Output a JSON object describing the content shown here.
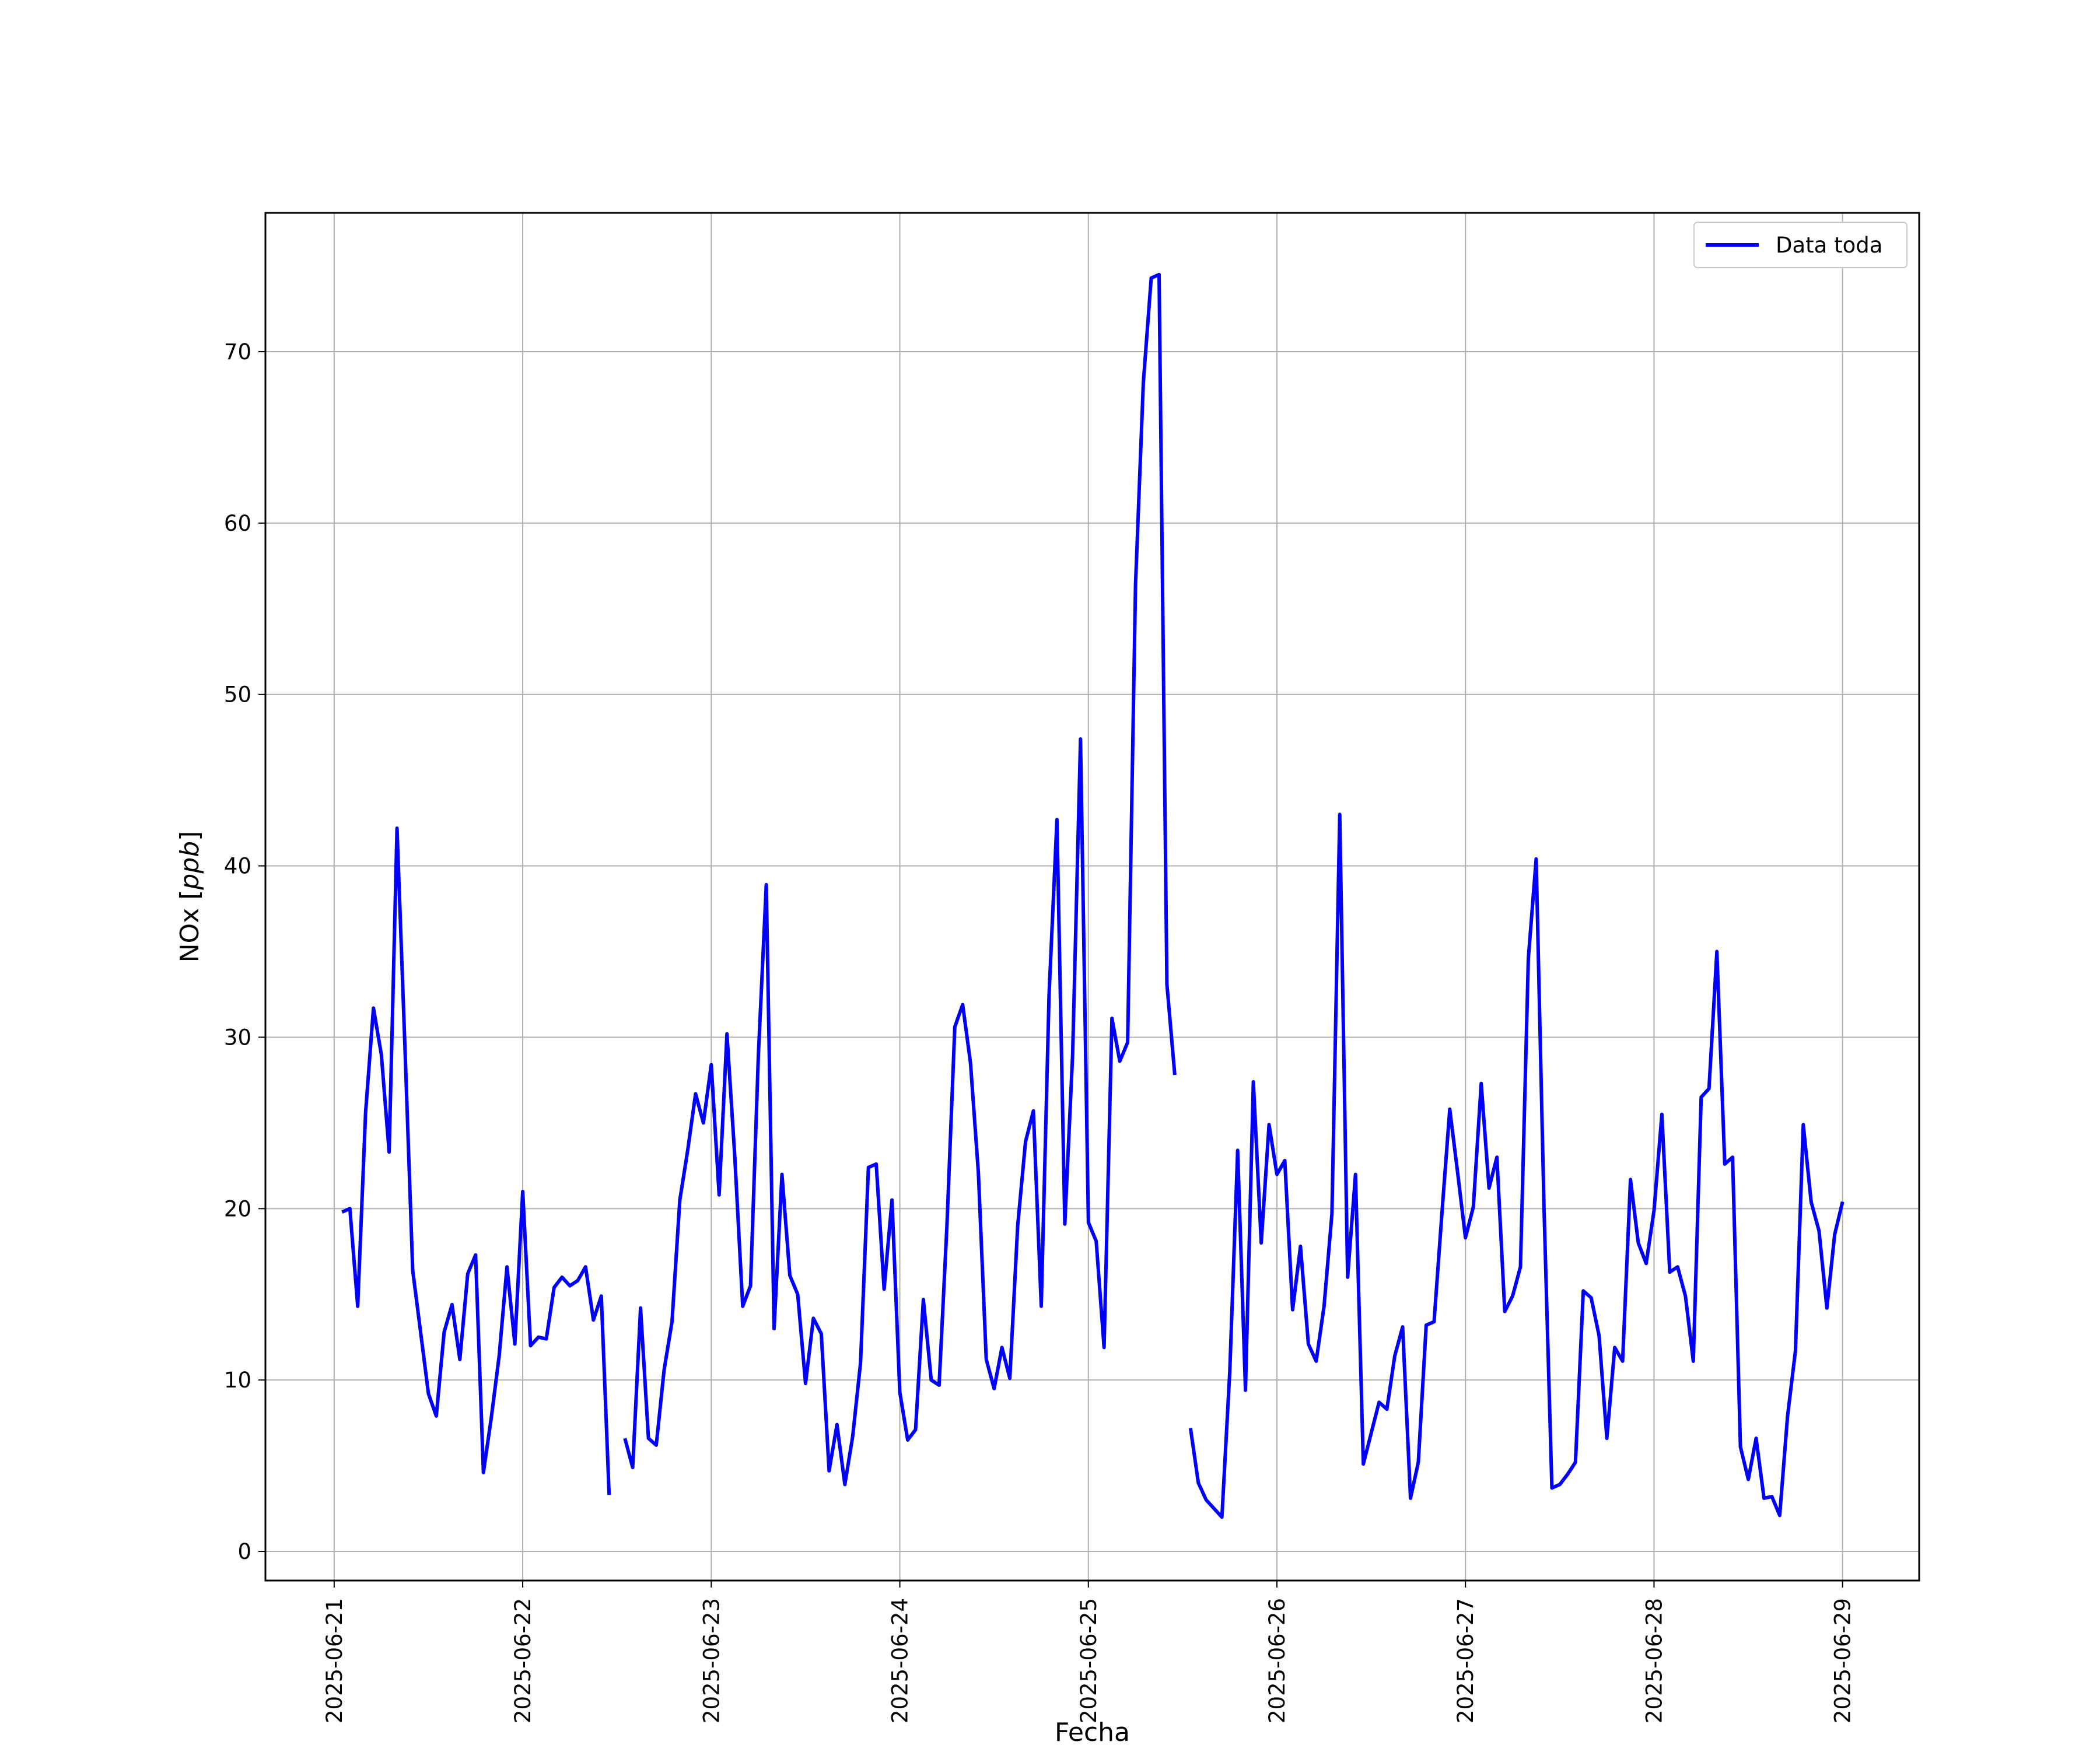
{
  "chart_data": {
    "type": "line",
    "title": "",
    "xlabel": "Fecha",
    "ylabel_main": "NOx [",
    "ylabel_unit": "ppb",
    "ylabel_close": "]",
    "x_ticks": [
      "2025-06-21",
      "2025-06-22",
      "2025-06-23",
      "2025-06-24",
      "2025-06-25",
      "2025-06-26",
      "2025-06-27",
      "2025-06-28",
      "2025-06-29"
    ],
    "y_ticks": [
      0,
      10,
      20,
      30,
      40,
      50,
      60,
      70
    ],
    "xlim": [
      "2025-06-20T15:15",
      "2025-06-29T09:45"
    ],
    "ylim": [
      -1.7,
      78.1
    ],
    "grid": true,
    "legend_position": "top-right",
    "series": [
      {
        "name": "Data toda",
        "color": "#0000ff",
        "points": [
          [
            "2025-06-21T01:00",
            19.8
          ],
          [
            "2025-06-21T02:00",
            20.0
          ],
          [
            "2025-06-21T03:00",
            14.3
          ],
          [
            "2025-06-21T04:00",
            25.6
          ],
          [
            "2025-06-21T05:00",
            31.7
          ],
          [
            "2025-06-21T06:00",
            29.0
          ],
          [
            "2025-06-21T07:00",
            23.3
          ],
          [
            "2025-06-21T08:00",
            42.2
          ],
          [
            "2025-06-21T09:00",
            29.5
          ],
          [
            "2025-06-21T10:00",
            16.4
          ],
          [
            "2025-06-21T11:00",
            12.8
          ],
          [
            "2025-06-21T12:00",
            9.2
          ],
          [
            "2025-06-21T13:00",
            7.9
          ],
          [
            "2025-06-21T14:00",
            12.8
          ],
          [
            "2025-06-21T15:00",
            14.4
          ],
          [
            "2025-06-21T16:00",
            11.2
          ],
          [
            "2025-06-21T17:00",
            16.2
          ],
          [
            "2025-06-21T18:00",
            17.3
          ],
          [
            "2025-06-21T19:00",
            4.6
          ],
          [
            "2025-06-21T20:00",
            7.8
          ],
          [
            "2025-06-21T21:00",
            11.4
          ],
          [
            "2025-06-21T22:00",
            16.6
          ],
          [
            "2025-06-21T23:00",
            12.1
          ],
          [
            "2025-06-22T00:00",
            21.0
          ],
          [
            "2025-06-22T01:00",
            12.0
          ],
          [
            "2025-06-22T02:00",
            12.5
          ],
          [
            "2025-06-22T03:00",
            12.4
          ],
          [
            "2025-06-22T04:00",
            15.4
          ],
          [
            "2025-06-22T05:00",
            16.0
          ],
          [
            "2025-06-22T06:00",
            15.5
          ],
          [
            "2025-06-22T07:00",
            15.8
          ],
          [
            "2025-06-22T08:00",
            16.6
          ],
          [
            "2025-06-22T09:00",
            13.5
          ],
          [
            "2025-06-22T10:00",
            14.9
          ],
          [
            "2025-06-22T11:00",
            3.3
          ],
          [
            "2025-06-22T12:00",
            null
          ],
          [
            "2025-06-22T13:00",
            6.6
          ],
          [
            "2025-06-22T14:00",
            4.9
          ],
          [
            "2025-06-22T15:00",
            14.2
          ],
          [
            "2025-06-22T16:00",
            6.6
          ],
          [
            "2025-06-22T17:00",
            6.2
          ],
          [
            "2025-06-22T18:00",
            10.6
          ],
          [
            "2025-06-22T19:00",
            13.4
          ],
          [
            "2025-06-22T20:00",
            20.5
          ],
          [
            "2025-06-22T21:00",
            23.4
          ],
          [
            "2025-06-22T22:00",
            26.7
          ],
          [
            "2025-06-22T23:00",
            25.0
          ],
          [
            "2025-06-23T00:00",
            28.4
          ],
          [
            "2025-06-23T01:00",
            20.8
          ],
          [
            "2025-06-23T02:00",
            30.2
          ],
          [
            "2025-06-23T03:00",
            23.0
          ],
          [
            "2025-06-23T04:00",
            14.3
          ],
          [
            "2025-06-23T05:00",
            15.5
          ],
          [
            "2025-06-23T06:00",
            29.0
          ],
          [
            "2025-06-23T07:00",
            38.9
          ],
          [
            "2025-06-23T08:00",
            13.0
          ],
          [
            "2025-06-23T09:00",
            22.0
          ],
          [
            "2025-06-23T10:00",
            16.1
          ],
          [
            "2025-06-23T11:00",
            15.0
          ],
          [
            "2025-06-23T12:00",
            9.8
          ],
          [
            "2025-06-23T13:00",
            13.6
          ],
          [
            "2025-06-23T14:00",
            12.7
          ],
          [
            "2025-06-23T15:00",
            4.7
          ],
          [
            "2025-06-23T16:00",
            7.4
          ],
          [
            "2025-06-23T17:00",
            3.9
          ],
          [
            "2025-06-23T18:00",
            6.7
          ],
          [
            "2025-06-23T19:00",
            11.0
          ],
          [
            "2025-06-23T20:00",
            22.4
          ],
          [
            "2025-06-23T21:00",
            22.6
          ],
          [
            "2025-06-23T22:00",
            15.3
          ],
          [
            "2025-06-23T23:00",
            20.5
          ],
          [
            "2025-06-24T00:00",
            9.3
          ],
          [
            "2025-06-24T01:00",
            6.5
          ],
          [
            "2025-06-24T02:00",
            7.1
          ],
          [
            "2025-06-24T03:00",
            14.7
          ],
          [
            "2025-06-24T04:00",
            10.0
          ],
          [
            "2025-06-24T05:00",
            9.7
          ],
          [
            "2025-06-24T06:00",
            19.0
          ],
          [
            "2025-06-24T07:00",
            30.6
          ],
          [
            "2025-06-24T08:00",
            31.9
          ],
          [
            "2025-06-24T09:00",
            28.5
          ],
          [
            "2025-06-24T10:00",
            22.1
          ],
          [
            "2025-06-24T11:00",
            11.2
          ],
          [
            "2025-06-24T12:00",
            9.5
          ],
          [
            "2025-06-24T13:00",
            11.9
          ],
          [
            "2025-06-24T14:00",
            10.1
          ],
          [
            "2025-06-24T15:00",
            19.0
          ],
          [
            "2025-06-24T16:00",
            23.9
          ],
          [
            "2025-06-24T17:00",
            25.7
          ],
          [
            "2025-06-24T18:00",
            14.3
          ],
          [
            "2025-06-24T19:00",
            32.5
          ],
          [
            "2025-06-24T20:00",
            42.7
          ],
          [
            "2025-06-24T21:00",
            19.1
          ],
          [
            "2025-06-24T22:00",
            29.0
          ],
          [
            "2025-06-24T23:00",
            47.4
          ],
          [
            "2025-06-25T00:00",
            19.2
          ],
          [
            "2025-06-25T01:00",
            18.1
          ],
          [
            "2025-06-25T02:00",
            11.9
          ],
          [
            "2025-06-25T03:00",
            31.1
          ],
          [
            "2025-06-25T04:00",
            28.6
          ],
          [
            "2025-06-25T05:00",
            29.7
          ],
          [
            "2025-06-25T06:00",
            56.4
          ],
          [
            "2025-06-25T07:00",
            68.2
          ],
          [
            "2025-06-25T08:00",
            74.3
          ],
          [
            "2025-06-25T09:00",
            74.5
          ],
          [
            "2025-06-25T10:00",
            33.1
          ],
          [
            "2025-06-25T11:00",
            27.8
          ],
          [
            "2025-06-25T12:00",
            null
          ],
          [
            "2025-06-25T13:00",
            7.2
          ],
          [
            "2025-06-25T14:00",
            4.0
          ],
          [
            "2025-06-25T15:00",
            3.0
          ],
          [
            "2025-06-25T16:00",
            2.5
          ],
          [
            "2025-06-25T17:00",
            2.0
          ],
          [
            "2025-06-25T18:00",
            10.5
          ],
          [
            "2025-06-25T19:00",
            23.4
          ],
          [
            "2025-06-25T20:00",
            9.4
          ],
          [
            "2025-06-25T21:00",
            27.4
          ],
          [
            "2025-06-25T22:00",
            18.0
          ],
          [
            "2025-06-25T23:00",
            24.9
          ],
          [
            "2025-06-26T00:00",
            22.0
          ],
          [
            "2025-06-26T01:00",
            22.8
          ],
          [
            "2025-06-26T02:00",
            14.1
          ],
          [
            "2025-06-26T03:00",
            17.8
          ],
          [
            "2025-06-26T04:00",
            12.1
          ],
          [
            "2025-06-26T05:00",
            11.1
          ],
          [
            "2025-06-26T06:00",
            14.3
          ],
          [
            "2025-06-26T07:00",
            19.7
          ],
          [
            "2025-06-26T08:00",
            43.0
          ],
          [
            "2025-06-26T09:00",
            16.0
          ],
          [
            "2025-06-26T10:00",
            22.0
          ],
          [
            "2025-06-26T11:00",
            5.1
          ],
          [
            "2025-06-26T12:00",
            6.9
          ],
          [
            "2025-06-26T13:00",
            8.7
          ],
          [
            "2025-06-26T14:00",
            8.3
          ],
          [
            "2025-06-26T15:00",
            11.4
          ],
          [
            "2025-06-26T16:00",
            13.1
          ],
          [
            "2025-06-26T17:00",
            3.1
          ],
          [
            "2025-06-26T18:00",
            5.2
          ],
          [
            "2025-06-26T19:00",
            13.2
          ],
          [
            "2025-06-26T20:00",
            13.4
          ],
          [
            "2025-06-26T21:00",
            19.7
          ],
          [
            "2025-06-26T22:00",
            25.8
          ],
          [
            "2025-06-26T23:00",
            22.1
          ],
          [
            "2025-06-27T00:00",
            18.3
          ],
          [
            "2025-06-27T01:00",
            20.1
          ],
          [
            "2025-06-27T02:00",
            27.3
          ],
          [
            "2025-06-27T03:00",
            21.2
          ],
          [
            "2025-06-27T04:00",
            23.0
          ],
          [
            "2025-06-27T05:00",
            14.0
          ],
          [
            "2025-06-27T06:00",
            14.9
          ],
          [
            "2025-06-27T07:00",
            16.6
          ],
          [
            "2025-06-27T08:00",
            34.6
          ],
          [
            "2025-06-27T09:00",
            40.4
          ],
          [
            "2025-06-27T10:00",
            20.0
          ],
          [
            "2025-06-27T11:00",
            3.7
          ],
          [
            "2025-06-27T12:00",
            3.9
          ],
          [
            "2025-06-27T13:00",
            4.5
          ],
          [
            "2025-06-27T14:00",
            5.2
          ],
          [
            "2025-06-27T15:00",
            15.2
          ],
          [
            "2025-06-27T16:00",
            14.8
          ],
          [
            "2025-06-27T17:00",
            12.6
          ],
          [
            "2025-06-27T18:00",
            6.6
          ],
          [
            "2025-06-27T19:00",
            11.9
          ],
          [
            "2025-06-27T20:00",
            11.1
          ],
          [
            "2025-06-27T21:00",
            21.7
          ],
          [
            "2025-06-27T22:00",
            18.0
          ],
          [
            "2025-06-27T23:00",
            16.8
          ],
          [
            "2025-06-28T00:00",
            19.9
          ],
          [
            "2025-06-28T01:00",
            25.5
          ],
          [
            "2025-06-28T02:00",
            16.3
          ],
          [
            "2025-06-28T03:00",
            16.6
          ],
          [
            "2025-06-28T04:00",
            14.9
          ],
          [
            "2025-06-28T05:00",
            11.1
          ],
          [
            "2025-06-28T06:00",
            26.5
          ],
          [
            "2025-06-28T07:00",
            27.0
          ],
          [
            "2025-06-28T08:00",
            35.0
          ],
          [
            "2025-06-28T09:00",
            22.6
          ],
          [
            "2025-06-28T10:00",
            23.0
          ],
          [
            "2025-06-28T11:00",
            6.1
          ],
          [
            "2025-06-28T12:00",
            4.2
          ],
          [
            "2025-06-28T13:00",
            6.6
          ],
          [
            "2025-06-28T14:00",
            3.1
          ],
          [
            "2025-06-28T15:00",
            3.2
          ],
          [
            "2025-06-28T16:00",
            2.1
          ],
          [
            "2025-06-28T17:00",
            7.9
          ],
          [
            "2025-06-28T18:00",
            11.7
          ],
          [
            "2025-06-28T19:00",
            24.9
          ],
          [
            "2025-06-28T20:00",
            20.4
          ],
          [
            "2025-06-28T21:00",
            18.7
          ],
          [
            "2025-06-28T22:00",
            14.2
          ],
          [
            "2025-06-28T23:00",
            18.5
          ],
          [
            "2025-06-29T00:00",
            20.4
          ]
        ]
      }
    ]
  }
}
